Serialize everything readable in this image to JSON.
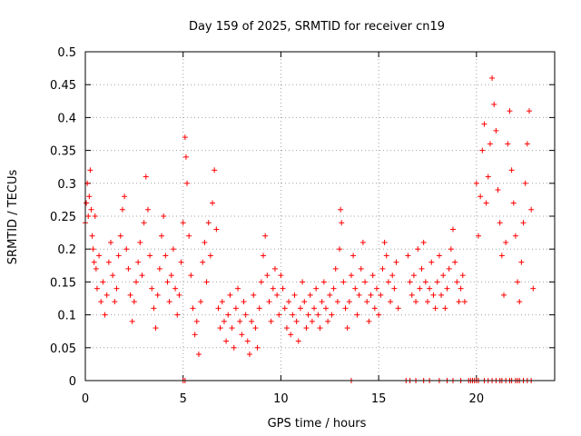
{
  "chart_data": {
    "type": "scatter",
    "title": "Day 159 of 2025, SRMTID for receiver cn19",
    "xlabel": "GPS time / hours",
    "ylabel": "SRMTID / TECUs",
    "xlim": [
      0,
      24
    ],
    "ylim": [
      0,
      0.5
    ],
    "xticks": [
      0,
      5,
      10,
      15,
      20
    ],
    "yticks": [
      0,
      0.05,
      0.1,
      0.15,
      0.2,
      0.25,
      0.3,
      0.35,
      0.4,
      0.45,
      0.5
    ],
    "grid": true,
    "marker": "+",
    "marker_color": "#ff0000",
    "series": [
      {
        "name": "SRMTID",
        "points": [
          [
            0.0,
            0.24
          ],
          [
            0.05,
            0.27
          ],
          [
            0.1,
            0.3
          ],
          [
            0.15,
            0.25
          ],
          [
            0.2,
            0.28
          ],
          [
            0.25,
            0.32
          ],
          [
            0.3,
            0.26
          ],
          [
            0.35,
            0.22
          ],
          [
            0.4,
            0.2
          ],
          [
            0.45,
            0.18
          ],
          [
            0.5,
            0.25
          ],
          [
            0.55,
            0.17
          ],
          [
            0.6,
            0.14
          ],
          [
            0.7,
            0.19
          ],
          [
            0.8,
            0.12
          ],
          [
            0.9,
            0.15
          ],
          [
            1.0,
            0.1
          ],
          [
            1.1,
            0.13
          ],
          [
            1.2,
            0.18
          ],
          [
            1.3,
            0.21
          ],
          [
            1.4,
            0.16
          ],
          [
            1.5,
            0.12
          ],
          [
            1.6,
            0.14
          ],
          [
            1.7,
            0.19
          ],
          [
            1.8,
            0.22
          ],
          [
            1.9,
            0.26
          ],
          [
            2.0,
            0.28
          ],
          [
            2.1,
            0.2
          ],
          [
            2.2,
            0.17
          ],
          [
            2.3,
            0.13
          ],
          [
            2.4,
            0.09
          ],
          [
            2.5,
            0.12
          ],
          [
            2.6,
            0.15
          ],
          [
            2.7,
            0.18
          ],
          [
            2.8,
            0.21
          ],
          [
            2.9,
            0.16
          ],
          [
            3.0,
            0.24
          ],
          [
            3.1,
            0.31
          ],
          [
            3.2,
            0.26
          ],
          [
            3.3,
            0.19
          ],
          [
            3.4,
            0.14
          ],
          [
            3.5,
            0.11
          ],
          [
            3.6,
            0.08
          ],
          [
            3.7,
            0.13
          ],
          [
            3.8,
            0.17
          ],
          [
            3.9,
            0.22
          ],
          [
            4.0,
            0.25
          ],
          [
            4.1,
            0.19
          ],
          [
            4.2,
            0.15
          ],
          [
            4.3,
            0.12
          ],
          [
            4.4,
            0.16
          ],
          [
            4.5,
            0.2
          ],
          [
            4.6,
            0.14
          ],
          [
            4.7,
            0.1
          ],
          [
            4.8,
            0.13
          ],
          [
            4.9,
            0.18
          ],
          [
            5.0,
            0.24
          ],
          [
            5.1,
            0.37
          ],
          [
            5.15,
            0.34
          ],
          [
            5.2,
            0.3
          ],
          [
            5.3,
            0.22
          ],
          [
            5.4,
            0.16
          ],
          [
            5.5,
            0.11
          ],
          [
            5.6,
            0.07
          ],
          [
            5.7,
            0.09
          ],
          [
            5.8,
            0.04
          ],
          [
            5.9,
            0.12
          ],
          [
            6.0,
            0.18
          ],
          [
            6.1,
            0.21
          ],
          [
            6.2,
            0.15
          ],
          [
            6.3,
            0.24
          ],
          [
            6.4,
            0.19
          ],
          [
            6.5,
            0.27
          ],
          [
            6.6,
            0.32
          ],
          [
            6.7,
            0.23
          ],
          [
            6.8,
            0.11
          ],
          [
            6.9,
            0.08
          ],
          [
            7.0,
            0.12
          ],
          [
            7.1,
            0.09
          ],
          [
            7.2,
            0.06
          ],
          [
            7.3,
            0.1
          ],
          [
            7.4,
            0.13
          ],
          [
            7.5,
            0.08
          ],
          [
            7.6,
            0.05
          ],
          [
            7.7,
            0.11
          ],
          [
            7.8,
            0.14
          ],
          [
            7.9,
            0.09
          ],
          [
            8.0,
            0.07
          ],
          [
            8.1,
            0.12
          ],
          [
            8.2,
            0.1
          ],
          [
            8.3,
            0.06
          ],
          [
            8.4,
            0.04
          ],
          [
            8.5,
            0.09
          ],
          [
            8.6,
            0.13
          ],
          [
            8.7,
            0.08
          ],
          [
            8.8,
            0.05
          ],
          [
            8.9,
            0.11
          ],
          [
            9.0,
            0.15
          ],
          [
            9.1,
            0.19
          ],
          [
            9.2,
            0.22
          ],
          [
            9.3,
            0.16
          ],
          [
            9.4,
            0.12
          ],
          [
            9.5,
            0.09
          ],
          [
            9.6,
            0.14
          ],
          [
            9.7,
            0.17
          ],
          [
            9.8,
            0.13
          ],
          [
            9.9,
            0.1
          ],
          [
            10.0,
            0.16
          ],
          [
            10.1,
            0.14
          ],
          [
            10.2,
            0.11
          ],
          [
            10.3,
            0.08
          ],
          [
            10.4,
            0.12
          ],
          [
            10.5,
            0.07
          ],
          [
            10.6,
            0.1
          ],
          [
            10.7,
            0.13
          ],
          [
            10.8,
            0.09
          ],
          [
            10.9,
            0.06
          ],
          [
            11.0,
            0.11
          ],
          [
            11.1,
            0.15
          ],
          [
            11.2,
            0.12
          ],
          [
            11.3,
            0.08
          ],
          [
            11.4,
            0.1
          ],
          [
            11.5,
            0.13
          ],
          [
            11.6,
            0.09
          ],
          [
            11.7,
            0.11
          ],
          [
            11.8,
            0.14
          ],
          [
            11.9,
            0.1
          ],
          [
            12.0,
            0.08
          ],
          [
            12.1,
            0.12
          ],
          [
            12.2,
            0.15
          ],
          [
            12.3,
            0.11
          ],
          [
            12.4,
            0.09
          ],
          [
            12.5,
            0.13
          ],
          [
            12.6,
            0.1
          ],
          [
            12.7,
            0.14
          ],
          [
            12.8,
            0.17
          ],
          [
            12.9,
            0.12
          ],
          [
            13.0,
            0.2
          ],
          [
            13.05,
            0.26
          ],
          [
            13.1,
            0.24
          ],
          [
            13.2,
            0.15
          ],
          [
            13.3,
            0.11
          ],
          [
            13.4,
            0.08
          ],
          [
            13.5,
            0.12
          ],
          [
            13.6,
            0.16
          ],
          [
            13.7,
            0.19
          ],
          [
            13.8,
            0.14
          ],
          [
            13.9,
            0.1
          ],
          [
            14.0,
            0.13
          ],
          [
            14.1,
            0.17
          ],
          [
            14.2,
            0.21
          ],
          [
            14.3,
            0.15
          ],
          [
            14.4,
            0.12
          ],
          [
            14.5,
            0.09
          ],
          [
            14.6,
            0.13
          ],
          [
            14.7,
            0.16
          ],
          [
            14.8,
            0.11
          ],
          [
            14.9,
            0.14
          ],
          [
            15.0,
            0.1
          ],
          [
            15.1,
            0.13
          ],
          [
            15.2,
            0.17
          ],
          [
            15.3,
            0.21
          ],
          [
            15.4,
            0.19
          ],
          [
            15.5,
            0.15
          ],
          [
            15.6,
            0.12
          ],
          [
            15.7,
            0.16
          ],
          [
            15.8,
            0.14
          ],
          [
            15.9,
            0.18
          ],
          [
            16.0,
            0.11
          ],
          [
            16.5,
            0.19
          ],
          [
            16.6,
            0.15
          ],
          [
            16.7,
            0.13
          ],
          [
            16.8,
            0.16
          ],
          [
            16.9,
            0.12
          ],
          [
            17.0,
            0.2
          ],
          [
            17.1,
            0.14
          ],
          [
            17.2,
            0.17
          ],
          [
            17.3,
            0.21
          ],
          [
            17.4,
            0.15
          ],
          [
            17.5,
            0.12
          ],
          [
            17.6,
            0.14
          ],
          [
            17.7,
            0.18
          ],
          [
            17.8,
            0.13
          ],
          [
            17.9,
            0.11
          ],
          [
            18.0,
            0.15
          ],
          [
            18.1,
            0.19
          ],
          [
            18.2,
            0.13
          ],
          [
            18.3,
            0.16
          ],
          [
            18.4,
            0.11
          ],
          [
            18.5,
            0.14
          ],
          [
            18.6,
            0.17
          ],
          [
            18.7,
            0.2
          ],
          [
            18.8,
            0.23
          ],
          [
            18.9,
            0.18
          ],
          [
            19.0,
            0.15
          ],
          [
            19.1,
            0.12
          ],
          [
            19.2,
            0.14
          ],
          [
            19.3,
            0.16
          ],
          [
            19.4,
            0.12
          ],
          [
            20.0,
            0.3
          ],
          [
            20.1,
            0.22
          ],
          [
            20.2,
            0.28
          ],
          [
            20.3,
            0.35
          ],
          [
            20.4,
            0.39
          ],
          [
            20.5,
            0.27
          ],
          [
            20.6,
            0.31
          ],
          [
            20.7,
            0.36
          ],
          [
            20.8,
            0.46
          ],
          [
            20.9,
            0.42
          ],
          [
            21.0,
            0.38
          ],
          [
            21.1,
            0.29
          ],
          [
            21.2,
            0.24
          ],
          [
            21.3,
            0.19
          ],
          [
            21.4,
            0.13
          ],
          [
            21.5,
            0.21
          ],
          [
            21.6,
            0.36
          ],
          [
            21.7,
            0.41
          ],
          [
            21.8,
            0.32
          ],
          [
            21.9,
            0.27
          ],
          [
            22.0,
            0.22
          ],
          [
            22.1,
            0.15
          ],
          [
            22.2,
            0.12
          ],
          [
            22.3,
            0.18
          ],
          [
            22.4,
            0.24
          ],
          [
            22.5,
            0.3
          ],
          [
            22.6,
            0.36
          ],
          [
            22.7,
            0.41
          ],
          [
            22.8,
            0.26
          ],
          [
            22.9,
            0.14
          ]
        ],
        "zero_points_x": [
          5.0,
          5.1,
          13.6,
          16.4,
          16.6,
          16.9,
          17.3,
          17.6,
          18.1,
          18.5,
          18.8,
          19.2,
          19.6,
          19.7,
          19.8,
          19.9,
          20.0,
          20.1,
          20.4,
          20.6,
          20.8,
          21.0,
          21.2,
          21.3,
          21.5,
          21.7,
          21.8,
          22.0,
          22.1,
          22.2,
          22.4,
          22.6,
          22.8
        ]
      }
    ]
  }
}
